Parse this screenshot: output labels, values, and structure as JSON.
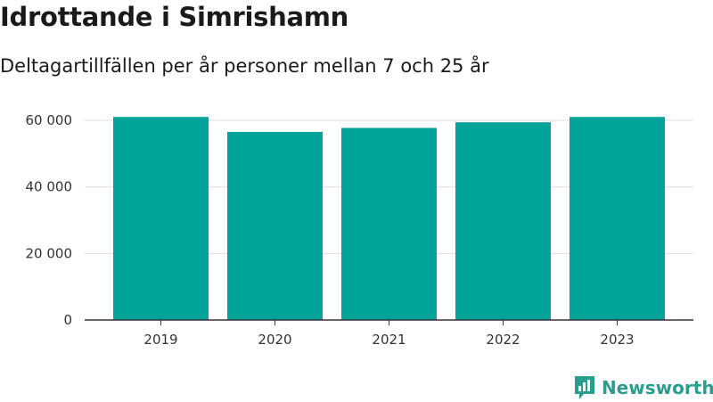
{
  "title": "Idrottande i Simrishamn",
  "subtitle": "Deltagartillfällen per år personer mellan 7 och 25 år",
  "brand": {
    "name": "Newsworthy",
    "icon": "newsworthy-logo-icon",
    "color": "#2a9d8f"
  },
  "colors": {
    "bar": "#00a398",
    "grid": "#dddddd",
    "axis": "#333333"
  },
  "chart_data": {
    "type": "bar",
    "title": "",
    "xlabel": "",
    "ylabel": "",
    "categories": [
      "2019",
      "2020",
      "2021",
      "2022",
      "2023"
    ],
    "values": [
      61000,
      56500,
      57700,
      59400,
      61000
    ],
    "ylim": [
      0,
      64000
    ],
    "yticks": [
      0,
      20000,
      40000,
      60000
    ],
    "ytick_labels": [
      "0",
      "20 000",
      "40 000",
      "60 000"
    ],
    "grid": true,
    "legend": "none"
  }
}
